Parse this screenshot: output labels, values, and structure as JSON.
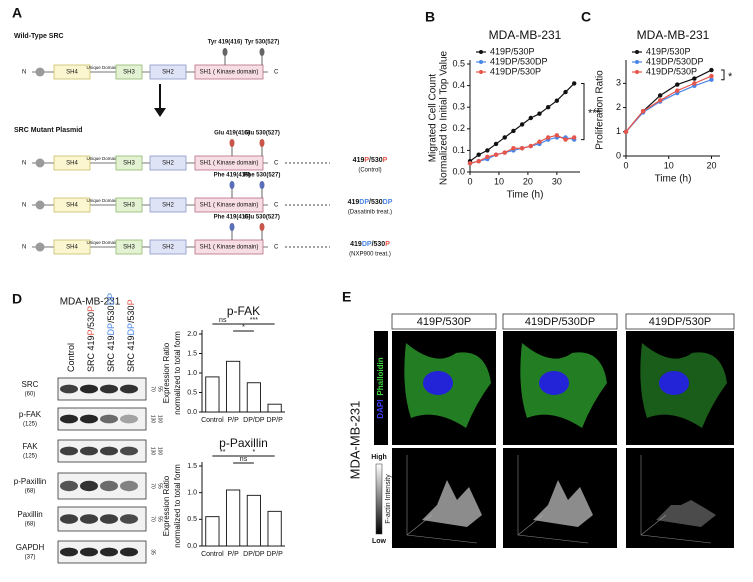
{
  "panel_a": {
    "label": "A",
    "wild_type": "Wild-Type SRC",
    "mutant": "SRC Mutant Plasmid",
    "domains": {
      "n": "N",
      "sh4": "SH4",
      "unique": "Unique Domain",
      "sh3": "SH3",
      "sh2": "SH2",
      "sh1": "SH1 ( Kinase domain)",
      "c": "C"
    },
    "wt_sites": [
      "Tyr 419(416)",
      "Tyr 530(527)"
    ],
    "rows": [
      {
        "sites": [
          "Glu 419(416)",
          "Glu 530(527)"
        ],
        "name": [
          "419",
          "P",
          "/530",
          "P"
        ],
        "note": "(Control)"
      },
      {
        "sites": [
          "Phe 419(416)",
          "Phe 530(527)"
        ],
        "name": [
          "419",
          "DP",
          "/530",
          "DP"
        ],
        "note": "(Dasatinib treat.)"
      },
      {
        "sites": [
          "Phe 419(416)",
          "Glu 530(527)"
        ],
        "name": [
          "419",
          "DP",
          "/530",
          "P"
        ],
        "note": "(NXP900 treat.)"
      }
    ]
  },
  "panel_d": {
    "label": "D",
    "title": "MDA-MB-231",
    "lanes": [
      [
        "Control"
      ],
      [
        "SRC 419",
        "P",
        "/530",
        "P"
      ],
      [
        "SRC 419",
        "DP",
        "/530",
        "DP"
      ],
      [
        "SRC 419",
        "DP",
        "/530",
        "P"
      ]
    ],
    "blots": [
      {
        "name": "SRC",
        "kda": "(60)",
        "markers": [
          "70",
          "55"
        ]
      },
      {
        "name": "p-FAK",
        "kda": "(125)",
        "markers": [
          "130",
          "100"
        ]
      },
      {
        "name": "FAK",
        "kda": "(125)",
        "markers": [
          "130",
          "100"
        ]
      },
      {
        "name": "p-Paxillin",
        "kda": "(68)",
        "markers": [
          "70",
          "55"
        ]
      },
      {
        "name": "Paxillin",
        "kda": "(68)",
        "markers": [
          "70",
          "55"
        ]
      },
      {
        "name": "GAPDH",
        "kda": "(37)",
        "markers": [
          "35"
        ]
      }
    ]
  },
  "panel_e": {
    "label": "E",
    "columns": [
      "419P/530P",
      "419DP/530DP",
      "419DP/530P"
    ],
    "cell_line": "MDA-MB-231",
    "stains": [
      "DAPI",
      "Phalloidin"
    ],
    "scale": {
      "high": "High",
      "low": "Low",
      "title": "F-actin Intensity"
    }
  },
  "chart_data": [
    {
      "type": "line",
      "panel_label": "B",
      "title": "MDA-MB-231",
      "xlabel": "Time (h)",
      "ylabel": [
        "Migrated Cell Count",
        "Normalized to Initial Top Value"
      ],
      "x": [
        0,
        3,
        6,
        9,
        12,
        15,
        18,
        21,
        24,
        27,
        30,
        33,
        36
      ],
      "xlim": [
        0,
        38
      ],
      "xticks": [
        0,
        10,
        20,
        30
      ],
      "ylim": [
        0,
        0.5
      ],
      "yticks": [
        {
          "value": 0,
          "label": "0.0"
        },
        0.1,
        0.2,
        0.3,
        0.4,
        0.5
      ],
      "series": [
        {
          "name": "419P/530P",
          "color": "#111111",
          "values": [
            0.05,
            0.08,
            0.1,
            0.13,
            0.16,
            0.19,
            0.22,
            0.25,
            0.27,
            0.3,
            0.33,
            0.37,
            0.41
          ]
        },
        {
          "name": "419DP/530DP",
          "color": "#4a86e8",
          "values": [
            0.04,
            0.05,
            0.06,
            0.08,
            0.09,
            0.1,
            0.11,
            0.12,
            0.13,
            0.15,
            0.16,
            0.16,
            0.15
          ]
        },
        {
          "name": "419DP/530P",
          "color": "#e8554a",
          "values": [
            0.04,
            0.05,
            0.07,
            0.08,
            0.09,
            0.11,
            0.11,
            0.12,
            0.14,
            0.16,
            0.17,
            0.15,
            0.16
          ]
        }
      ],
      "annotations": [
        "***"
      ]
    },
    {
      "type": "line",
      "panel_label": "C",
      "title": "MDA-MB-231",
      "xlabel": "Time (h)",
      "ylabel": [
        "Proliferation Ratio"
      ],
      "x": [
        0,
        4,
        8,
        12,
        16,
        20
      ],
      "xlim": [
        0,
        22
      ],
      "xticks": [
        0,
        10,
        20
      ],
      "ylim": [
        0,
        3.8
      ],
      "yticks": [
        0,
        1,
        2,
        3
      ],
      "series": [
        {
          "name": "419P/530P",
          "color": "#111111",
          "values": [
            1,
            1.85,
            2.5,
            2.95,
            3.2,
            3.55
          ]
        },
        {
          "name": "419DP/530DP",
          "color": "#4a86e8",
          "values": [
            1,
            1.8,
            2.25,
            2.6,
            2.9,
            3.15
          ]
        },
        {
          "name": "419DP/530P",
          "color": "#e8554a",
          "values": [
            1,
            1.85,
            2.3,
            2.7,
            3.0,
            3.3
          ]
        }
      ],
      "annotations": [
        "*"
      ]
    },
    {
      "type": "bar",
      "title": "p-FAK",
      "ylabel": [
        "Expression Ratio",
        "normalized to total form"
      ],
      "categories": [
        "Control",
        "P/P",
        "DP/DP",
        "DP/P"
      ],
      "category_colors": [
        "#111111",
        "#e8554a",
        "#4a86e8",
        "#4a86e8"
      ],
      "values": [
        0.9,
        1.3,
        0.75,
        0.2
      ],
      "color": "#ffffff",
      "ylim": [
        0,
        2
      ],
      "yticks": [
        {
          "value": 0,
          "label": "0.0"
        },
        0.5,
        {
          "value": 1,
          "label": "1.0"
        },
        1.5,
        {
          "value": 2,
          "label": "2.0"
        }
      ],
      "annotations": [
        "ns",
        "*",
        "***"
      ]
    },
    {
      "type": "bar",
      "title": "p-Paxillin",
      "ylabel": [
        "Expression Ratio",
        "normalized to total form"
      ],
      "categories": [
        "Control",
        "P/P",
        "DP/DP",
        "DP/P"
      ],
      "category_colors": [
        "#111111",
        "#e8554a",
        "#4a86e8",
        "#4a86e8"
      ],
      "values": [
        0.55,
        1.05,
        0.95,
        0.65
      ],
      "color": "#ffffff",
      "ylim": [
        0,
        1.5
      ],
      "yticks": [
        {
          "value": 0,
          "label": "0.0"
        },
        0.5,
        {
          "value": 1,
          "label": "1.0"
        },
        1.5
      ],
      "annotations": [
        "**",
        "ns",
        "*"
      ]
    }
  ]
}
